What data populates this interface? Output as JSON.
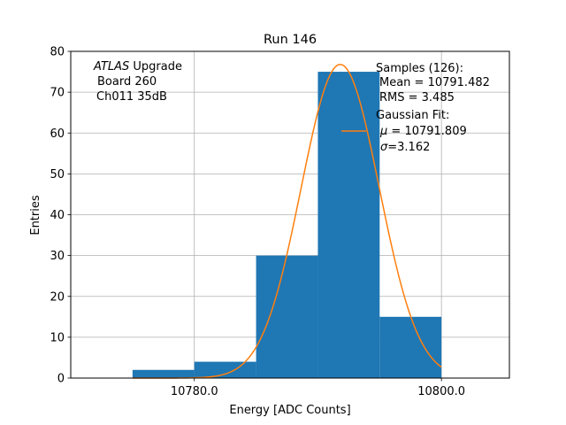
{
  "chart_data": {
    "type": "bar",
    "title": "Run 146",
    "xlabel": "Energy [ADC Counts]",
    "ylabel": "Entries",
    "xlim": [
      10770,
      10805.5
    ],
    "ylim": [
      0,
      80
    ],
    "x_ticks": [
      10780.0,
      10800.0
    ],
    "x_tick_labels": [
      "10780.0",
      "10800.0"
    ],
    "y_ticks": [
      0,
      10,
      20,
      30,
      40,
      50,
      60,
      70,
      80
    ],
    "grid": true,
    "bar_color": "#1f77b4",
    "fit_color": "#ff7f0e",
    "bins": [
      {
        "x0": 10775,
        "x1": 10780,
        "value": 2
      },
      {
        "x0": 10780,
        "x1": 10785,
        "value": 4
      },
      {
        "x0": 10785,
        "x1": 10790,
        "value": 30
      },
      {
        "x0": 10790,
        "x1": 10795,
        "value": 75
      },
      {
        "x0": 10795,
        "x1": 10800,
        "value": 15
      }
    ],
    "gaussian_fit": {
      "mu": 10791.809,
      "sigma": 3.162,
      "amplitude": 76.8,
      "x_range": [
        10775,
        10800
      ]
    },
    "annotation": {
      "atlas": "ATLAS",
      "upgrade": " Upgrade",
      "board": "Board 260",
      "channel": "Ch011 35dB"
    },
    "legend": {
      "samples_title": "Samples (126):",
      "mean": "Mean = 10791.482",
      "rms": "RMS = 3.485",
      "fit_title": "Gaussian Fit:",
      "mu_symbol": "μ",
      "mu_value": " = 10791.809",
      "sigma_symbol": "σ",
      "sigma_value": "=3.162"
    }
  }
}
